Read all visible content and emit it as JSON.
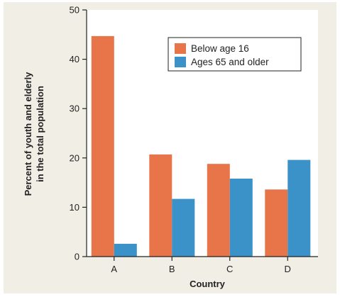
{
  "chart_data": {
    "type": "bar",
    "categories": [
      "A",
      "B",
      "C",
      "D"
    ],
    "series": [
      {
        "name": "Below age 16",
        "values": [
          44.7,
          20.7,
          18.8,
          13.6
        ],
        "color": "#e8744a"
      },
      {
        "name": "Ages 65 and older",
        "values": [
          2.6,
          11.7,
          15.8,
          19.6
        ],
        "color": "#3a92c9"
      }
    ],
    "title": "",
    "xlabel": "Country",
    "ylabel": [
      "Percent of youth and elderly",
      "in the total population"
    ],
    "ylim": [
      0,
      50
    ],
    "yticks": [
      "0",
      "10",
      "20",
      "30",
      "40",
      "50"
    ],
    "grid": false,
    "legend_position": "top-right"
  },
  "colors": {
    "background": "#f1efe5",
    "plot_background": "#ffffff"
  }
}
